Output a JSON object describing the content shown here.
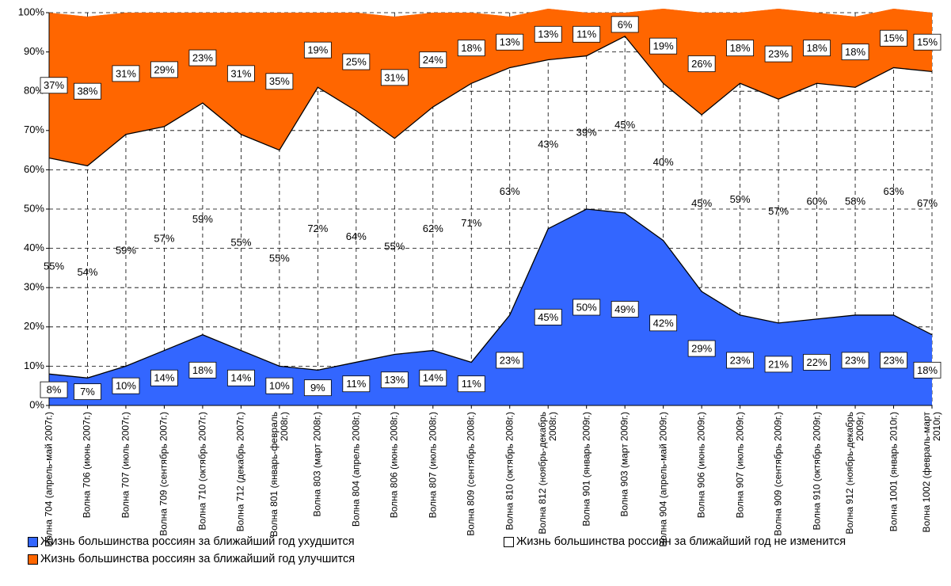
{
  "chart_data": {
    "type": "stacked_area",
    "categories": [
      "Волна 704 (апрель-май 2007г.)",
      "Волна 706 (июнь 2007г.)",
      "Волна 707 (июль 2007г.)",
      "Волна 709 (сентябрь 2007г.)",
      "Волна 710 (октябрь 2007г.)",
      "Волна 712 (декабрь 2007г.)",
      "Волна 801 (январь-февраль 2008г.)",
      "Волна 803 (март 2008г.)",
      "Волна 804 (апрель 2008г.)",
      "Волна 806 (июнь 2008г.)",
      "Волна 807 (июль 2008г.)",
      "Волна 809 (сентябрь 2008г.)",
      "Волна 810 (октябрь 2008г.)",
      "Волна 812 (ноябрь-декабрь 2008г.)",
      "Волна 901 (январь 2009г.)",
      "Волна 903 (март 2009г.)",
      "Волна 904 (апрель-май 2009г.)",
      "Волна 906 (июнь 2009г.)",
      "Волна 907 (июль 2009г.)",
      "Волна 909 (сентябрь 2009г.)",
      "Волна 910 (октябрь 2009г.)",
      "Волна 912 (ноябрь-декабрь 2009г.)",
      "Волна 1001 (январь 2010г.)",
      "Волна 1002 (февраль-март 2010г.)"
    ],
    "series": [
      {
        "name": "Жизнь большинства россиян за ближайший год ухудшится",
        "color": "#3366ff",
        "values": [
          8,
          7,
          10,
          14,
          18,
          14,
          10,
          9,
          11,
          13,
          14,
          11,
          23,
          45,
          50,
          49,
          42,
          29,
          23,
          21,
          22,
          23,
          23,
          18
        ],
        "value_labels": [
          "8%",
          "7%",
          "10%",
          "14%",
          "18%",
          "14%",
          "10%",
          "9%",
          "11%",
          "13%",
          "14%",
          "11%",
          "23%",
          "45%",
          "50%",
          "49%",
          "42%",
          "29%",
          "23%",
          "21%",
          "22%",
          "23%",
          "23%",
          "18%"
        ]
      },
      {
        "name": "Жизнь большинства россиян за ближайший год не изменится",
        "color": "#ffffff",
        "values": [
          55,
          54,
          59,
          57,
          59,
          55,
          55,
          72,
          64,
          55,
          62,
          71,
          63,
          43,
          39,
          45,
          40,
          45,
          59,
          57,
          60,
          58,
          63,
          67
        ],
        "value_labels": [
          "55%",
          "54%",
          "59%",
          "57%",
          "59%",
          "55%",
          "55%",
          "72%",
          "64%",
          "55%",
          "62%",
          "71%",
          "63%",
          "43%",
          "39%",
          "45%",
          "40%",
          "45%",
          "59%",
          "57%",
          "60%",
          "58%",
          "63%",
          "67%"
        ]
      },
      {
        "name": "Жизнь большинства россиян за ближайший год улучшится",
        "color": "#ff6600",
        "values": [
          37,
          38,
          31,
          29,
          23,
          31,
          35,
          19,
          25,
          31,
          24,
          18,
          13,
          13,
          11,
          6,
          19,
          26,
          18,
          23,
          18,
          18,
          15,
          15
        ],
        "value_labels": [
          "37%",
          "38%",
          "31%",
          "29%",
          "23%",
          "31%",
          "35%",
          "19%",
          "25%",
          "31%",
          "24%",
          "18%",
          "13%",
          "13%",
          "11%",
          "6%",
          "19%",
          "26%",
          "18%",
          "23%",
          "18%",
          "18%",
          "15%",
          "15%"
        ]
      }
    ],
    "ylim": [
      0,
      100
    ],
    "yticks": [
      {
        "value": 0,
        "label": "0%"
      },
      {
        "value": 10,
        "label": "10%"
      },
      {
        "value": 20,
        "label": "20%"
      },
      {
        "value": 30,
        "label": "30%"
      },
      {
        "value": 40,
        "label": "40%"
      },
      {
        "value": 50,
        "label": "50%"
      },
      {
        "value": 60,
        "label": "60%"
      },
      {
        "value": 70,
        "label": "70%"
      },
      {
        "value": 80,
        "label": "80%"
      },
      {
        "value": 90,
        "label": "90%"
      },
      {
        "value": 100,
        "label": "100%"
      }
    ],
    "grid": true
  }
}
